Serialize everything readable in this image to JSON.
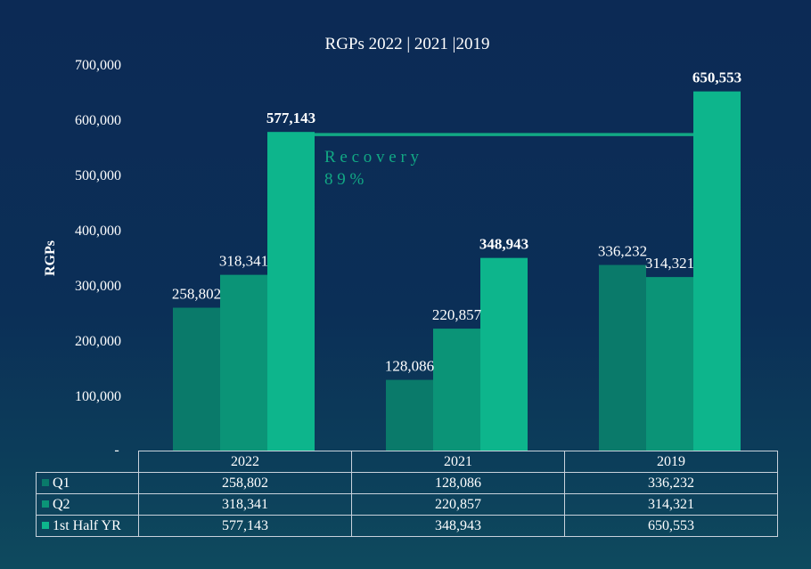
{
  "chart_data": {
    "type": "bar",
    "title": "RGPs 2022 | 2021 |2019",
    "ylabel": "RGPs",
    "xlabel": "",
    "ylim": [
      0,
      700000
    ],
    "yticks": [
      {
        "value": 0,
        "label": "-"
      },
      {
        "value": 100000,
        "label": "100,000"
      },
      {
        "value": 200000,
        "label": "200,000"
      },
      {
        "value": 300000,
        "label": "300,000"
      },
      {
        "value": 400000,
        "label": "400,000"
      },
      {
        "value": 500000,
        "label": "500,000"
      },
      {
        "value": 600000,
        "label": "600,000"
      },
      {
        "value": 700000,
        "label": "700,000"
      }
    ],
    "categories": [
      "2022",
      "2021",
      "2019"
    ],
    "series": [
      {
        "name": "Q1",
        "color": "#0a7a6a",
        "values": [
          258802,
          128086,
          336232
        ],
        "labels": [
          "258,802",
          "128,086",
          "336,232"
        ],
        "bold": false
      },
      {
        "name": "Q2",
        "color": "#0b9477",
        "values": [
          318341,
          220857,
          314321
        ],
        "labels": [
          "318,341",
          "220,857",
          "314,321"
        ],
        "bold": false
      },
      {
        "name": "1st Half YR",
        "color": "#0db58c",
        "values": [
          577143,
          348943,
          650553
        ],
        "labels": [
          "577,143",
          "348,943",
          "650,553"
        ],
        "bold": true
      }
    ],
    "annotation": {
      "text_line1": "R e c o v e r y",
      "text_line2": "8 9 %",
      "connects": [
        "2022 1st Half YR",
        "2019 1st Half YR"
      ],
      "color": "#12a884"
    },
    "legend": "data table below chart"
  }
}
